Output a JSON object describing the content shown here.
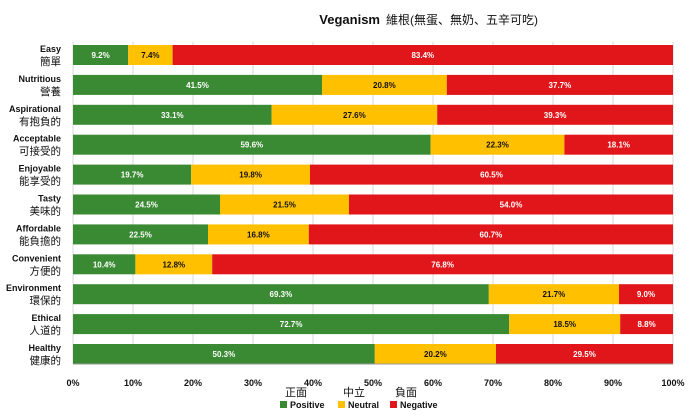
{
  "chart_data": {
    "type": "bar",
    "orientation": "horizontal",
    "stacked": true,
    "title": "Veganism",
    "subtitle": "維根(無蛋、無奶、五辛可吃)",
    "categories": [
      {
        "en": "Easy",
        "zh": "簡單"
      },
      {
        "en": "Nutritious",
        "zh": "營養"
      },
      {
        "en": "Aspirational",
        "zh": "有抱負的"
      },
      {
        "en": "Acceptable",
        "zh": "可接受的"
      },
      {
        "en": "Enjoyable",
        "zh": "能享受的"
      },
      {
        "en": "Tasty",
        "zh": "美味的"
      },
      {
        "en": "Affordable",
        "zh": "能負擔的"
      },
      {
        "en": "Convenient",
        "zh": "方便的"
      },
      {
        "en": "Environment",
        "zh": "環保的"
      },
      {
        "en": "Ethical",
        "zh": "人道的"
      },
      {
        "en": "Healthy",
        "zh": "健康的"
      }
    ],
    "series": [
      {
        "name": "Positive",
        "name_zh": "正面",
        "color": "#3A8A33",
        "values": [
          9.2,
          41.5,
          33.1,
          59.6,
          19.7,
          24.5,
          22.5,
          10.4,
          69.3,
          72.7,
          50.3
        ],
        "labels": [
          "9.2%",
          "41.5%",
          "33.1%",
          "59.6%",
          "19.7%",
          "24.5%",
          "22.5%",
          "10.4%",
          "69.3%",
          "72.7%",
          "50.3%"
        ]
      },
      {
        "name": "Neutral",
        "name_zh": "中立",
        "color": "#FFC000",
        "values": [
          7.4,
          20.8,
          27.6,
          22.3,
          19.8,
          21.5,
          16.8,
          12.8,
          21.7,
          18.5,
          20.2
        ],
        "labels": [
          "7.4%",
          "20.8%",
          "27.6%",
          "22.3%",
          "19.8%",
          "21.5%",
          "16.8%",
          "12.8%",
          "21.7%",
          "18.5%",
          "20.2%"
        ]
      },
      {
        "name": "Negative",
        "name_zh": "負面",
        "color": "#E0161B",
        "values": [
          83.4,
          37.7,
          39.3,
          18.1,
          60.5,
          54.0,
          60.7,
          76.8,
          9.0,
          8.8,
          29.5
        ],
        "labels": [
          "83.4%",
          "37.7%",
          "39.3%",
          "18.1%",
          "60.5%",
          "54.0%",
          "60.7%",
          "76.8%",
          "9.0%",
          "8.8%",
          "29.5%"
        ]
      }
    ],
    "xlim": [
      0,
      100
    ],
    "x_ticks": [
      "0%",
      "10%",
      "20%",
      "30%",
      "40%",
      "50%",
      "60%",
      "70%",
      "80%",
      "90%",
      "100%"
    ],
    "legend_position": "bottom"
  }
}
